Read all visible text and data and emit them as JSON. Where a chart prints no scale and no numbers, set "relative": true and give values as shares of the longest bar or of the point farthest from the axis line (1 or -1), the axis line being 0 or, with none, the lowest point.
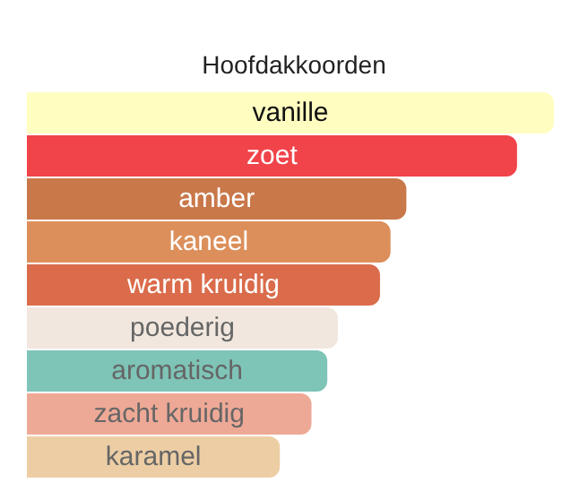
{
  "chart_data": {
    "type": "bar",
    "orientation": "horizontal",
    "relative": true,
    "title": "Hoofdakkoorden",
    "categories": [
      "vanille",
      "zoet",
      "amber",
      "kaneel",
      "warm kruidig",
      "poederig",
      "aromatisch",
      "zacht kruidig",
      "karamel"
    ],
    "values": [
      1,
      0.93,
      0.72,
      0.69,
      0.67,
      0.59,
      0.57,
      0.54,
      0.48
    ],
    "colors": [
      "#fffdc0",
      "#f0434a",
      "#c9784a",
      "#dc8f5b",
      "#da6c4b",
      "#f1e7de",
      "#7ec4b7",
      "#eea996",
      "#edcea4"
    ]
  }
}
